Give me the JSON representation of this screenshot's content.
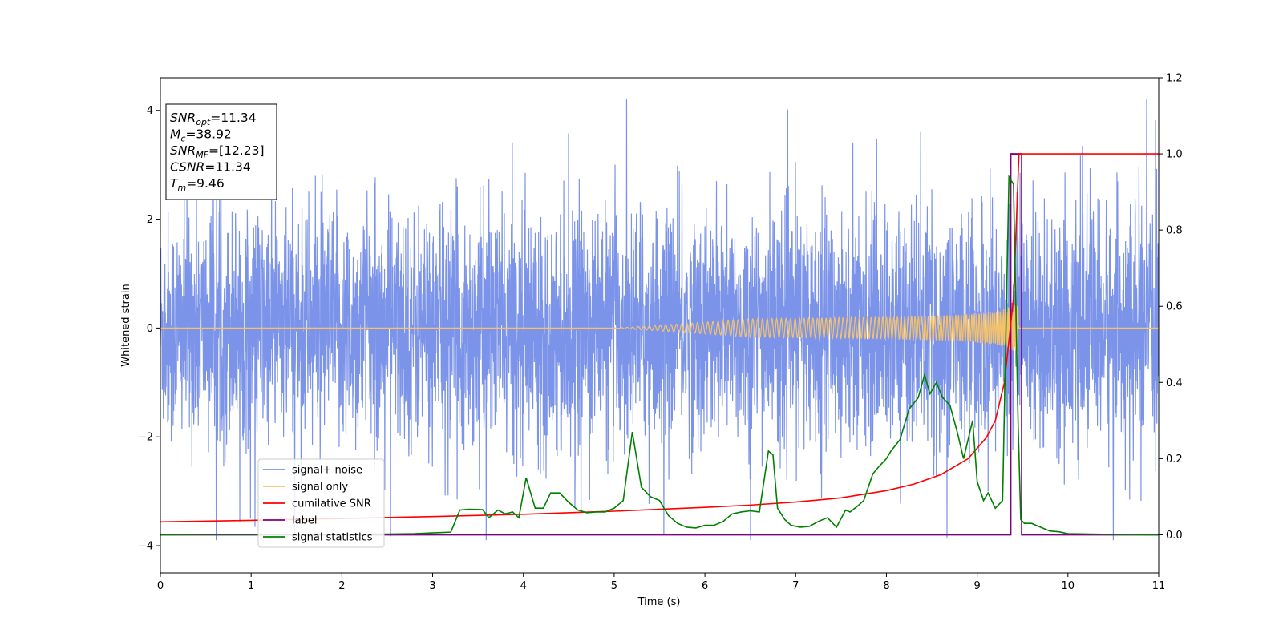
{
  "chart_data": {
    "type": "line",
    "title": "",
    "xlabel": "Time (s)",
    "ylabel": "Whitened strain",
    "xlim": [
      0,
      11
    ],
    "ylim_left": [
      -4.5,
      4.6
    ],
    "ylim_right": [
      -0.1,
      1.2
    ],
    "x_ticks": [
      0,
      1,
      2,
      3,
      4,
      5,
      6,
      7,
      8,
      9,
      10,
      11
    ],
    "y_ticks_left": [
      -4,
      -2,
      0,
      2,
      4
    ],
    "y_ticks_right": [
      0.0,
      0.2,
      0.4,
      0.6,
      0.8,
      1.0,
      1.2
    ],
    "grid": false,
    "legend_position": "lower-left",
    "annotation_box": {
      "lines": [
        {
          "sym": "SNR",
          "sub": "opt",
          "value": "=11.34"
        },
        {
          "sym": "M",
          "sub": "c",
          "value": "=38.92"
        },
        {
          "sym": "SNR",
          "sub": "MF",
          "value": "=[12.23]"
        },
        {
          "sym": "CSNR",
          "sub": "",
          "value": "=11.34"
        },
        {
          "sym": "T",
          "sub": "m",
          "value": "=9.46"
        }
      ]
    },
    "series": [
      {
        "name": "signal+ noise",
        "axis": "left",
        "color": "#7B93E8",
        "description": "whitened noisy strain, approx ±2 sigma band with spikes to ±4",
        "amplitude_range": [
          -3.9,
          4.2
        ]
      },
      {
        "name": "signal only",
        "axis": "left",
        "color": "#F5C26B",
        "chirp": {
          "t_merge": 9.46,
          "visible_from": 5.0,
          "max_amplitude": 0.45
        }
      },
      {
        "name": "cumilative SNR",
        "axis": "right",
        "color": "#FF0000",
        "x": [
          0,
          1,
          2,
          3,
          4,
          5,
          6,
          6.5,
          7,
          7.5,
          8,
          8.3,
          8.6,
          8.9,
          9.1,
          9.2,
          9.3,
          9.4,
          9.46,
          11
        ],
        "y": [
          0.034,
          0.038,
          0.043,
          0.048,
          0.054,
          0.062,
          0.072,
          0.078,
          0.086,
          0.097,
          0.116,
          0.133,
          0.158,
          0.2,
          0.255,
          0.3,
          0.4,
          0.62,
          1.0,
          1.0
        ]
      },
      {
        "name": "label",
        "axis": "right",
        "color": "#800080",
        "x": [
          0,
          9.37,
          9.37,
          9.49,
          9.49,
          11
        ],
        "y": [
          0,
          0,
          1,
          1,
          0,
          0
        ]
      },
      {
        "name": "signal statistics",
        "axis": "right",
        "color": "#008000",
        "x": [
          0,
          0.5,
          1,
          1.5,
          2,
          2.5,
          2.8,
          3,
          3.2,
          3.3,
          3.4,
          3.55,
          3.62,
          3.72,
          3.8,
          3.88,
          3.95,
          4.03,
          4.13,
          4.22,
          4.3,
          4.4,
          4.5,
          4.6,
          4.7,
          4.8,
          4.9,
          5.0,
          5.1,
          5.2,
          5.3,
          5.4,
          5.5,
          5.6,
          5.7,
          5.8,
          5.9,
          6.0,
          6.1,
          6.2,
          6.3,
          6.4,
          6.5,
          6.6,
          6.7,
          6.75,
          6.8,
          6.88,
          6.95,
          7.05,
          7.15,
          7.25,
          7.35,
          7.45,
          7.55,
          7.6,
          7.68,
          7.75,
          7.85,
          7.92,
          8.0,
          8.05,
          8.15,
          8.25,
          8.35,
          8.42,
          8.48,
          8.55,
          8.62,
          8.7,
          8.78,
          8.85,
          8.89,
          8.95,
          9.0,
          9.07,
          9.12,
          9.2,
          9.28,
          9.35,
          9.4,
          9.45,
          9.48,
          9.52,
          9.6,
          9.7,
          9.8,
          9.9,
          10.0,
          10.5,
          11
        ],
        "y": [
          0,
          0.001,
          0.001,
          0.001,
          0.001,
          0.002,
          0.003,
          0.005,
          0.007,
          0.065,
          0.067,
          0.066,
          0.045,
          0.065,
          0.055,
          0.06,
          0.045,
          0.15,
          0.07,
          0.07,
          0.11,
          0.11,
          0.085,
          0.065,
          0.058,
          0.06,
          0.06,
          0.07,
          0.09,
          0.27,
          0.125,
          0.1,
          0.09,
          0.05,
          0.03,
          0.02,
          0.018,
          0.025,
          0.025,
          0.035,
          0.055,
          0.06,
          0.063,
          0.06,
          0.22,
          0.21,
          0.07,
          0.04,
          0.025,
          0.02,
          0.022,
          0.035,
          0.045,
          0.02,
          0.065,
          0.06,
          0.075,
          0.09,
          0.16,
          0.18,
          0.2,
          0.22,
          0.25,
          0.33,
          0.36,
          0.42,
          0.37,
          0.4,
          0.36,
          0.34,
          0.27,
          0.2,
          0.24,
          0.3,
          0.14,
          0.09,
          0.11,
          0.07,
          0.09,
          0.94,
          0.92,
          0.3,
          0.04,
          0.03,
          0.03,
          0.02,
          0.01,
          0.008,
          0.003,
          0.001,
          0.0
        ]
      }
    ]
  }
}
